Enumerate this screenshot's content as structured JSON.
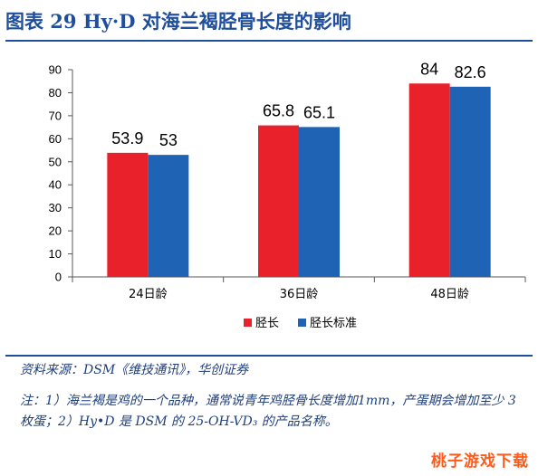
{
  "figure": {
    "title": "图表 29  Hy·D 对海兰褐胫骨长度的影响",
    "source": "资料来源：DSM《维技通讯》，华创证券",
    "note": "注：1）海兰褐是鸡的一个品种，通常说青年鸡胫骨长度增加1mm，产蛋期会增加至少 3 枚蛋；2）Hy•D 是 DSM 的 25-OH-VD₃ 的产品名称。",
    "watermark": "桃子游戏下载"
  },
  "chart_data": {
    "type": "bar",
    "categories": [
      "24日龄",
      "36日龄",
      "48日龄"
    ],
    "series": [
      {
        "name": "胫长",
        "values": [
          53.9,
          65.8,
          84
        ],
        "labels": [
          "53.9",
          "65.8",
          "84"
        ],
        "color": "#e8212b"
      },
      {
        "name": "胫长标准",
        "values": [
          53,
          65.1,
          82.6
        ],
        "labels": [
          "53",
          "65.1",
          "82.6"
        ],
        "color": "#1f63b5"
      }
    ],
    "ylim": [
      0,
      90
    ],
    "yticks": [
      "0",
      "10",
      "20",
      "30",
      "40",
      "50",
      "60",
      "70",
      "80",
      "90"
    ],
    "grid": false,
    "legend_position": "bottom"
  }
}
